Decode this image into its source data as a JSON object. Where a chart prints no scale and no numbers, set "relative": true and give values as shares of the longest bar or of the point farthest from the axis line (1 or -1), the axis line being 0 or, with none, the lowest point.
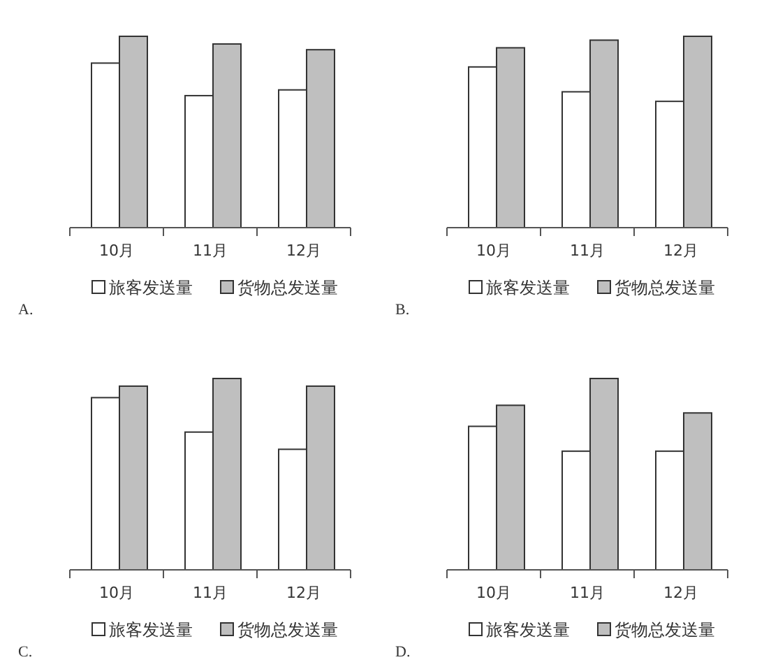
{
  "chart_data": [
    {
      "type": "bar",
      "relative": true,
      "categories": [
        "10月",
        "11月",
        "12月"
      ],
      "legend": "bottom",
      "annotations": [
        "A."
      ],
      "series": [
        {
          "name": "旅客发送量",
          "color": "#ffffff",
          "values": [
            0.86,
            0.69,
            0.72
          ]
        },
        {
          "name": "货物总发送量",
          "color": "#bfbfbf",
          "values": [
            1,
            0.96,
            0.93
          ]
        }
      ]
    },
    {
      "type": "bar",
      "relative": true,
      "categories": [
        "10月",
        "11月",
        "12月"
      ],
      "legend": "bottom",
      "annotations": [
        "B."
      ],
      "series": [
        {
          "name": "旅客发送量",
          "color": "#ffffff",
          "values": [
            0.84,
            0.71,
            0.66
          ]
        },
        {
          "name": "货物总发送量",
          "color": "#bfbfbf",
          "values": [
            0.94,
            0.98,
            1
          ]
        }
      ]
    },
    {
      "type": "bar",
      "relative": true,
      "categories": [
        "10月",
        "11月",
        "12月"
      ],
      "legend": "bottom",
      "annotations": [
        "C."
      ],
      "series": [
        {
          "name": "旅客发送量",
          "color": "#ffffff",
          "values": [
            0.9,
            0.72,
            0.63
          ]
        },
        {
          "name": "货物总发送量",
          "color": "#bfbfbf",
          "values": [
            0.96,
            1,
            0.96
          ]
        }
      ]
    },
    {
      "type": "bar",
      "relative": true,
      "categories": [
        "10月",
        "11月",
        "12月"
      ],
      "legend": "bottom",
      "annotations": [
        "D."
      ],
      "series": [
        {
          "name": "旅客发送量",
          "color": "#ffffff",
          "values": [
            0.75,
            0.62,
            0.62
          ]
        },
        {
          "name": "货物总发送量",
          "color": "#bfbfbf",
          "values": [
            0.86,
            1,
            0.82
          ]
        }
      ]
    }
  ]
}
